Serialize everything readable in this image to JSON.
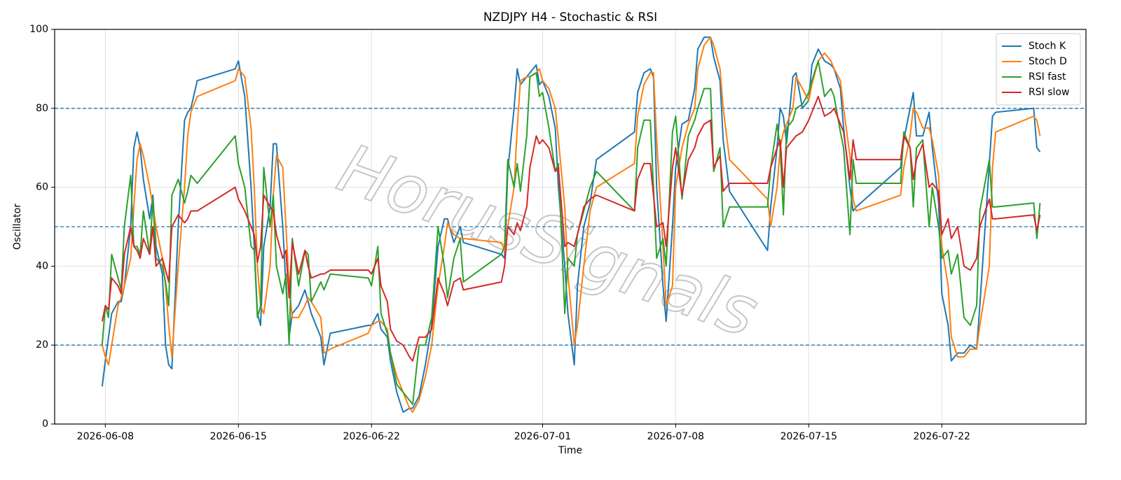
{
  "chart_data": {
    "type": "line",
    "title": "NZDJPY H4 - Stochastic & RSI",
    "xlabel": "Time",
    "ylabel": "Oscillator",
    "watermark": "HorusSignals",
    "grid": true,
    "legend": "upper right",
    "hlines": [
      20,
      50,
      80
    ],
    "hline_color": "#1f77b4",
    "xlim": [
      "2026-06-05 08:00",
      "2026-07-29 14:00"
    ],
    "xticks": [
      "2026-06-08",
      "2026-06-15",
      "2026-06-22",
      "2026-07-01",
      "2026-07-08",
      "2026-07-15",
      "2026-07-22"
    ],
    "ylim": [
      0,
      100
    ],
    "yticks": [
      0,
      20,
      40,
      60,
      80,
      100
    ],
    "x": [
      "2026-06-07 20:00",
      "2026-06-08 00:00",
      "2026-06-08 04:00",
      "2026-06-08 08:00",
      "2026-06-08 16:00",
      "2026-06-08 20:00",
      "2026-06-09 00:00",
      "2026-06-09 08:00",
      "2026-06-09 12:00",
      "2026-06-09 16:00",
      "2026-06-09 20:00",
      "2026-06-10 00:00",
      "2026-06-10 08:00",
      "2026-06-10 12:00",
      "2026-06-10 16:00",
      "2026-06-11 00:00",
      "2026-06-11 04:00",
      "2026-06-11 08:00",
      "2026-06-11 12:00",
      "2026-06-11 20:00",
      "2026-06-12 04:00",
      "2026-06-12 08:00",
      "2026-06-12 12:00",
      "2026-06-12 20:00",
      "2026-06-14 20:00",
      "2026-06-15 00:00",
      "2026-06-15 08:00",
      "2026-06-15 16:00",
      "2026-06-15 20:00",
      "2026-06-16 00:00",
      "2026-06-16 04:00",
      "2026-06-16 08:00",
      "2026-06-16 16:00",
      "2026-06-16 20:00",
      "2026-06-17 00:00",
      "2026-06-17 08:00",
      "2026-06-17 12:00",
      "2026-06-17 16:00",
      "2026-06-17 20:00",
      "2026-06-18 04:00",
      "2026-06-18 12:00",
      "2026-06-18 16:00",
      "2026-06-18 20:00",
      "2026-06-19 08:00",
      "2026-06-19 12:00",
      "2026-06-19 20:00",
      "2026-06-21 20:00",
      "2026-06-22 00:00",
      "2026-06-22 08:00",
      "2026-06-22 12:00",
      "2026-06-22 20:00",
      "2026-06-23 00:00",
      "2026-06-23 08:00",
      "2026-06-23 16:00",
      "2026-06-24 00:00",
      "2026-06-24 04:00",
      "2026-06-24 12:00",
      "2026-06-24 20:00",
      "2026-06-25 04:00",
      "2026-06-25 12:00",
      "2026-06-25 20:00",
      "2026-06-26 00:00",
      "2026-06-26 08:00",
      "2026-06-26 16:00",
      "2026-06-26 20:00",
      "2026-06-28 20:00",
      "2026-06-29 00:00",
      "2026-06-29 04:00",
      "2026-06-29 12:00",
      "2026-06-29 16:00",
      "2026-06-29 20:00",
      "2026-06-30 04:00",
      "2026-06-30 08:00",
      "2026-06-30 16:00",
      "2026-06-30 20:00",
      "2026-07-01 00:00",
      "2026-07-01 08:00",
      "2026-07-01 16:00",
      "2026-07-01 20:00",
      "2026-07-02 04:00",
      "2026-07-02 08:00",
      "2026-07-02 16:00",
      "2026-07-02 20:00",
      "2026-07-03 04:00",
      "2026-07-03 12:00",
      "2026-07-03 20:00",
      "2026-07-05 20:00",
      "2026-07-06 00:00",
      "2026-07-06 08:00",
      "2026-07-06 16:00",
      "2026-07-06 20:00",
      "2026-07-07 00:00",
      "2026-07-07 08:00",
      "2026-07-07 12:00",
      "2026-07-07 20:00",
      "2026-07-08 00:00",
      "2026-07-08 08:00",
      "2026-07-08 16:00",
      "2026-07-09 00:00",
      "2026-07-09 04:00",
      "2026-07-09 12:00",
      "2026-07-09 20:00",
      "2026-07-10 00:00",
      "2026-07-10 08:00",
      "2026-07-10 12:00",
      "2026-07-10 20:00",
      "2026-07-12 20:00",
      "2026-07-13 00:00",
      "2026-07-13 08:00",
      "2026-07-13 12:00",
      "2026-07-13 16:00",
      "2026-07-13 20:00",
      "2026-07-14 04:00",
      "2026-07-14 08:00",
      "2026-07-14 16:00",
      "2026-07-15 00:00",
      "2026-07-15 04:00",
      "2026-07-15 12:00",
      "2026-07-15 20:00",
      "2026-07-16 04:00",
      "2026-07-16 08:00",
      "2026-07-16 16:00",
      "2026-07-16 20:00",
      "2026-07-17 04:00",
      "2026-07-17 08:00",
      "2026-07-17 12:00",
      "2026-07-19 20:00",
      "2026-07-20 00:00",
      "2026-07-20 08:00",
      "2026-07-20 12:00",
      "2026-07-20 16:00",
      "2026-07-21 00:00",
      "2026-07-21 08:00",
      "2026-07-21 12:00",
      "2026-07-21 20:00",
      "2026-07-22 00:00",
      "2026-07-22 08:00",
      "2026-07-22 12:00",
      "2026-07-22 20:00",
      "2026-07-23 04:00",
      "2026-07-23 12:00",
      "2026-07-23 20:00",
      "2026-07-24 00:00",
      "2026-07-24 12:00",
      "2026-07-24 16:00",
      "2026-07-24 20:00",
      "2026-07-26 20:00",
      "2026-07-27 00:00",
      "2026-07-27 04:00"
    ],
    "series": [
      {
        "name": "Stoch K",
        "color": "#1f77b4",
        "values": [
          9.5,
          16,
          22,
          28,
          31,
          31,
          35,
          50,
          70,
          74,
          70,
          62,
          52,
          58,
          45,
          38,
          20,
          15,
          14,
          50,
          77,
          79,
          80,
          87,
          90,
          92,
          83,
          60,
          45,
          28,
          25,
          45,
          55,
          71,
          71,
          50,
          35,
          22,
          28,
          30,
          34,
          31,
          28,
          22,
          15,
          23,
          25,
          25,
          28,
          24,
          22,
          16,
          8,
          3,
          4,
          4,
          7,
          15,
          25,
          45,
          52,
          52,
          46,
          50,
          46,
          43,
          42,
          64,
          80,
          90,
          86,
          88,
          89,
          91,
          86,
          87,
          83,
          75,
          60,
          40,
          28,
          15,
          35,
          50,
          56,
          67,
          74,
          84,
          89,
          90,
          88,
          60,
          35,
          26,
          50,
          65,
          76,
          77,
          85,
          95,
          98,
          98,
          93,
          87,
          72,
          59,
          44,
          55,
          70,
          80,
          78,
          71,
          88,
          89,
          80,
          82,
          91,
          95,
          92,
          91,
          90,
          85,
          75,
          60,
          54,
          55,
          65,
          72,
          80,
          84,
          73,
          73,
          79,
          70,
          56,
          33,
          25,
          16,
          18,
          18,
          20,
          19,
          30,
          66,
          78,
          79,
          80,
          70,
          69
        ]
      },
      {
        "name": "Stoch D",
        "color": "#ff7f0e",
        "values": [
          20,
          17,
          15,
          20,
          30,
          32,
          35,
          42,
          55,
          67,
          71,
          68,
          60,
          55,
          50,
          42,
          35,
          25,
          17,
          40,
          60,
          73,
          79,
          83,
          87,
          90,
          88,
          75,
          60,
          40,
          30,
          28,
          40,
          58,
          68,
          65,
          50,
          35,
          27,
          27,
          30,
          32,
          31,
          27,
          18,
          19,
          23,
          25,
          26,
          26,
          24,
          18,
          12,
          8,
          4,
          3,
          6,
          12,
          20,
          35,
          45,
          51,
          48,
          47,
          47,
          46,
          44,
          50,
          60,
          75,
          87,
          88,
          88,
          89,
          90,
          87,
          85,
          80,
          72,
          55,
          38,
          20,
          25,
          40,
          54,
          60,
          66,
          78,
          86,
          89,
          89,
          72,
          45,
          30,
          35,
          60,
          70,
          76,
          80,
          90,
          96,
          98,
          96,
          90,
          80,
          67,
          57,
          50,
          60,
          70,
          74,
          76,
          80,
          88,
          85,
          82,
          86,
          92,
          94,
          92,
          90,
          87,
          80,
          68,
          57,
          54,
          58,
          65,
          73,
          80,
          79,
          75,
          75,
          72,
          63,
          45,
          35,
          22,
          17,
          17,
          19,
          19,
          25,
          40,
          65,
          74,
          78,
          77,
          73
        ]
      },
      {
        "name": "RSI fast",
        "color": "#2ca02c",
        "values": [
          20,
          30,
          27,
          43,
          37,
          34,
          50,
          63,
          45,
          45,
          43,
          54,
          43,
          57,
          42,
          40,
          36,
          30,
          58,
          62,
          56,
          59,
          63,
          61,
          73,
          66,
          60,
          45,
          44,
          27,
          30,
          65,
          50,
          58,
          40,
          33,
          38,
          20,
          47,
          35,
          44,
          43,
          31,
          36,
          34,
          38,
          37,
          35,
          45,
          28,
          23,
          18,
          10,
          8,
          6,
          5,
          20,
          20,
          27,
          50,
          40,
          32,
          42,
          47,
          36,
          43,
          45,
          67,
          60,
          66,
          59,
          73,
          88,
          89,
          83,
          84,
          75,
          64,
          66,
          28,
          42,
          40,
          48,
          54,
          60,
          64,
          54,
          70,
          77,
          77,
          60,
          42,
          47,
          40,
          74,
          78,
          57,
          73,
          77,
          80,
          85,
          85,
          64,
          70,
          50,
          55,
          55,
          65,
          76,
          70,
          53,
          75,
          77,
          80,
          81,
          84,
          87,
          92,
          83,
          85,
          83,
          74,
          70,
          48,
          67,
          61,
          61,
          74,
          70,
          55,
          70,
          72,
          50,
          60,
          50,
          42,
          44,
          38,
          43,
          27,
          25,
          30,
          54,
          67,
          55,
          55,
          56,
          47,
          56
        ]
      },
      {
        "name": "RSI slow",
        "color": "#d62728",
        "values": [
          26,
          30,
          29,
          37,
          35,
          33,
          43,
          50,
          45,
          44,
          42,
          47,
          43,
          50,
          40,
          42,
          39,
          36,
          50,
          53,
          51,
          52,
          54,
          54,
          60,
          57,
          54,
          50,
          48,
          41,
          45,
          58,
          55,
          54,
          48,
          42,
          44,
          32,
          46,
          38,
          44,
          40,
          37,
          38,
          38,
          39,
          39,
          38,
          42,
          35,
          31,
          24,
          21,
          20,
          17,
          16,
          22,
          22,
          24,
          37,
          33,
          30,
          36,
          37,
          34,
          36,
          40,
          50,
          48,
          51,
          49,
          55,
          65,
          73,
          71,
          72,
          70,
          64,
          65,
          45,
          46,
          45,
          48,
          55,
          57,
          58,
          54,
          62,
          66,
          66,
          58,
          50,
          51,
          45,
          65,
          70,
          58,
          67,
          70,
          73,
          76,
          77,
          65,
          68,
          59,
          61,
          61,
          65,
          70,
          72,
          60,
          70,
          72,
          73,
          74,
          77,
          79,
          83,
          78,
          79,
          80,
          76,
          74,
          62,
          72,
          67,
          67,
          73,
          70,
          62,
          67,
          71,
          60,
          61,
          59,
          48,
          52,
          47,
          50,
          40,
          39,
          42,
          50,
          57,
          52,
          52,
          53,
          49,
          53
        ]
      }
    ]
  }
}
